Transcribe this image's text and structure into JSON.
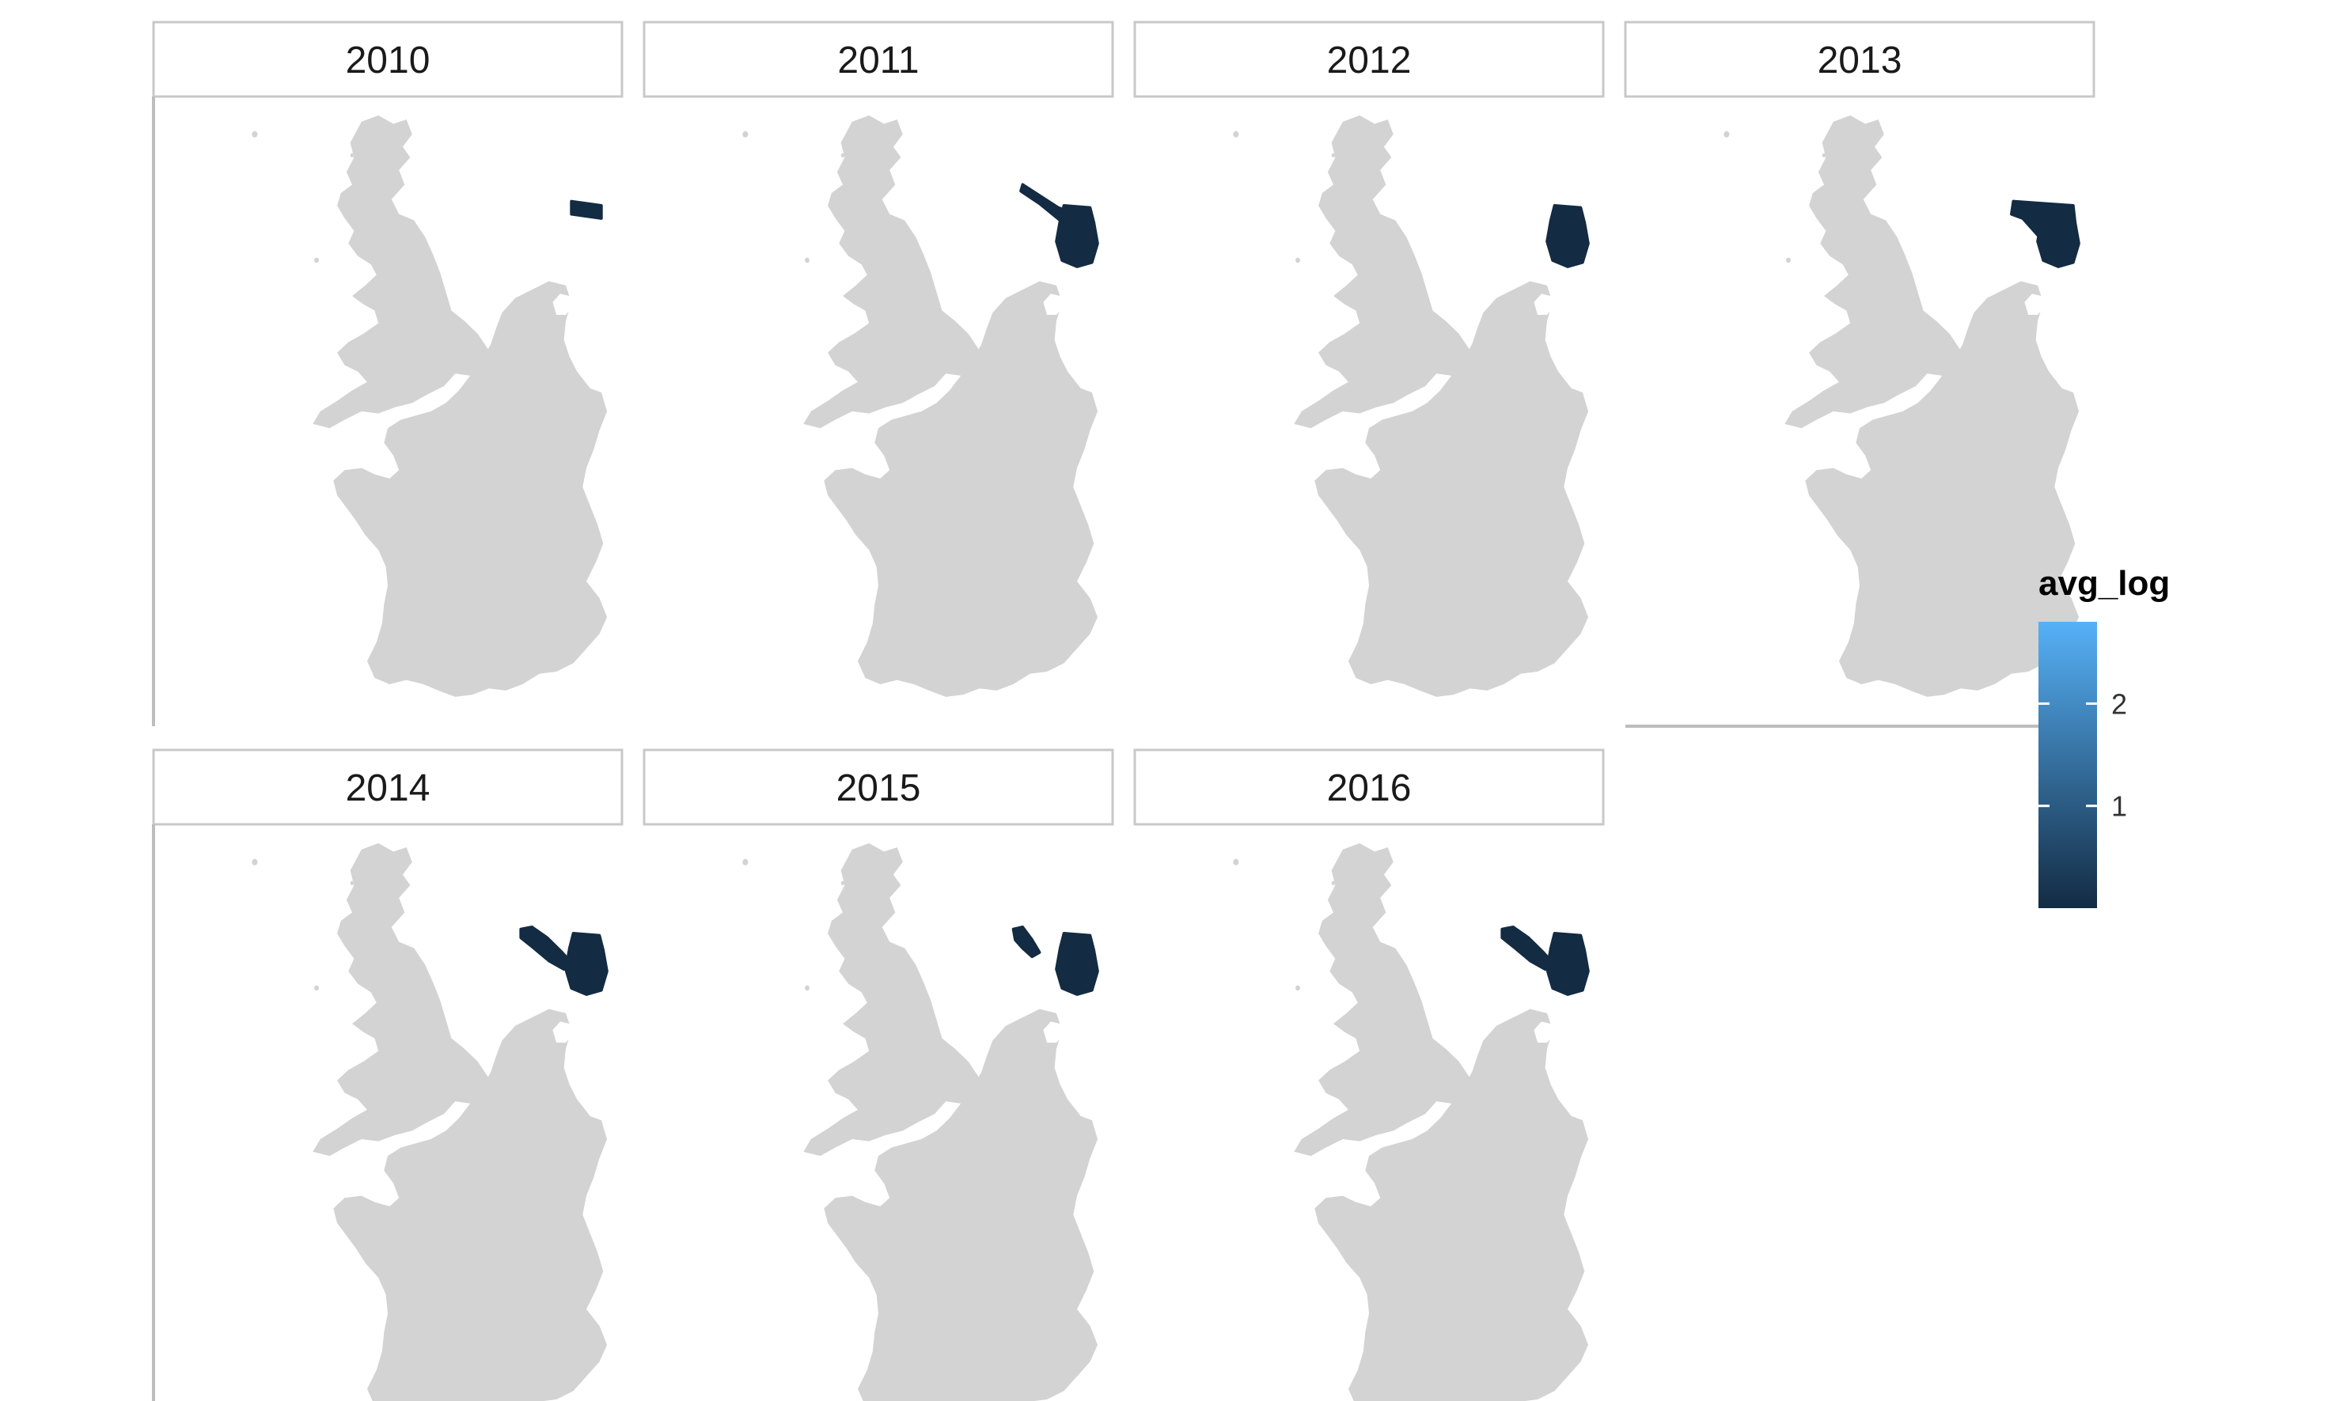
{
  "chart_data": {
    "type": "choropleth-facet",
    "facet_variable": "year",
    "panels": [
      {
        "year": "2010",
        "shaded_regions": [
          "north-sea-narrow-strip"
        ]
      },
      {
        "year": "2011",
        "shaded_regions": [
          "north-sea-strip",
          "dutch-coast-block"
        ]
      },
      {
        "year": "2012",
        "shaded_regions": [
          "dutch-coast-block"
        ]
      },
      {
        "year": "2013",
        "shaded_regions": [
          "north-sea-wide-strip",
          "dutch-coast-block"
        ]
      },
      {
        "year": "2014",
        "shaded_regions": [
          "north-sea-diagonal-strip",
          "dutch-coast-block"
        ]
      },
      {
        "year": "2015",
        "shaded_regions": [
          "north-sea-small-patch",
          "dutch-coast-block"
        ]
      },
      {
        "year": "2016",
        "shaded_regions": [
          "north-sea-diagonal-strip",
          "dutch-coast-block"
        ]
      }
    ],
    "base_map": {
      "regions": [
        "Great Britain",
        "France",
        "Belgium",
        "Netherlands",
        "Germany coast"
      ],
      "fill": "#d3d3d3"
    },
    "shaded_fill": "#132b43",
    "legend": {
      "title": "avg_log",
      "type": "gradient",
      "low_color": "#132b43",
      "high_color": "#56b1f7",
      "range": [
        0,
        2.8
      ],
      "ticks": [
        {
          "value": 1,
          "label": "1"
        },
        {
          "value": 2,
          "label": "2"
        }
      ],
      "position": "right"
    }
  }
}
